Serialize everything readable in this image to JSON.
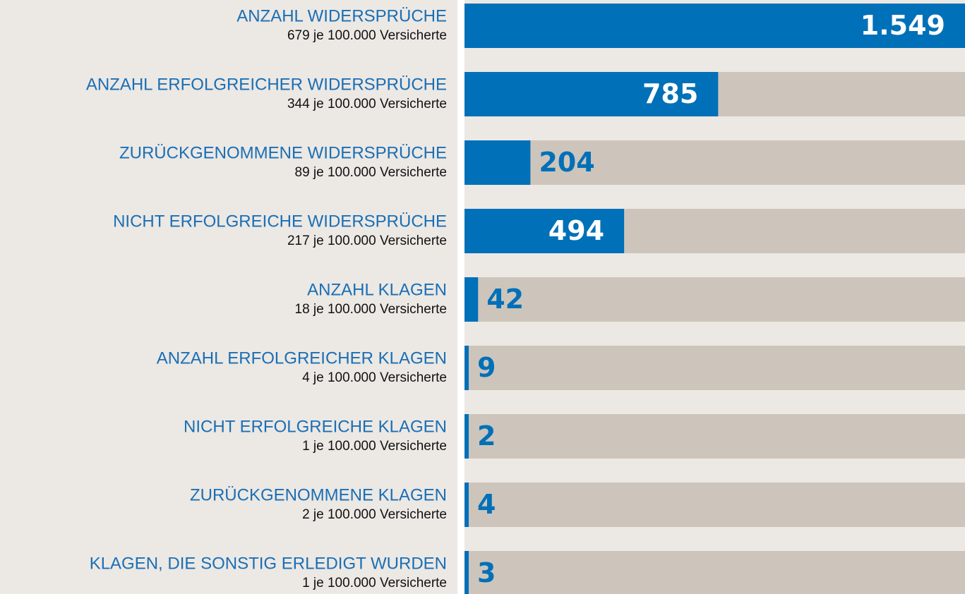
{
  "chart_data": {
    "type": "bar",
    "orientation": "horizontal",
    "categories": [
      "ANZAHL WIDERSPRÜCHE",
      "ANZAHL ERFOLGREICHER WIDERSPRÜCHE",
      "ZURÜCKGENOMMENE WIDERSPRÜCHE",
      "NICHT ERFOLGREICHE WIDERSPRÜCHE",
      "ANZAHL KLAGEN",
      "ANZAHL ERFOLGREICHER KLAGEN",
      "NICHT ERFOLGREICHE KLAGEN",
      "ZURÜCKGENOMMENE KLAGEN",
      "KLAGEN, DIE SONSTIG ERLEDIGT WURDEN"
    ],
    "sublabels": [
      "679 je 100.000 Versicherte",
      "344 je 100.000 Versicherte",
      "89 je 100.000 Versicherte",
      "217 je 100.000 Versicherte",
      "18 je 100.000 Versicherte",
      "4 je 100.000 Versicherte",
      "1 je 100.000 Versicherte",
      "2 je 100.000 Versicherte",
      "1 je 100.000 Versicherte"
    ],
    "values": [
      1549,
      785,
      204,
      494,
      42,
      9,
      2,
      4,
      3
    ],
    "value_labels": [
      "1.549",
      "785",
      "204",
      "494",
      "42",
      "9",
      "2",
      "4",
      "3"
    ],
    "color": "#0070b8",
    "track_color": "#cdc5bb",
    "xlim": [
      0,
      1549
    ]
  }
}
